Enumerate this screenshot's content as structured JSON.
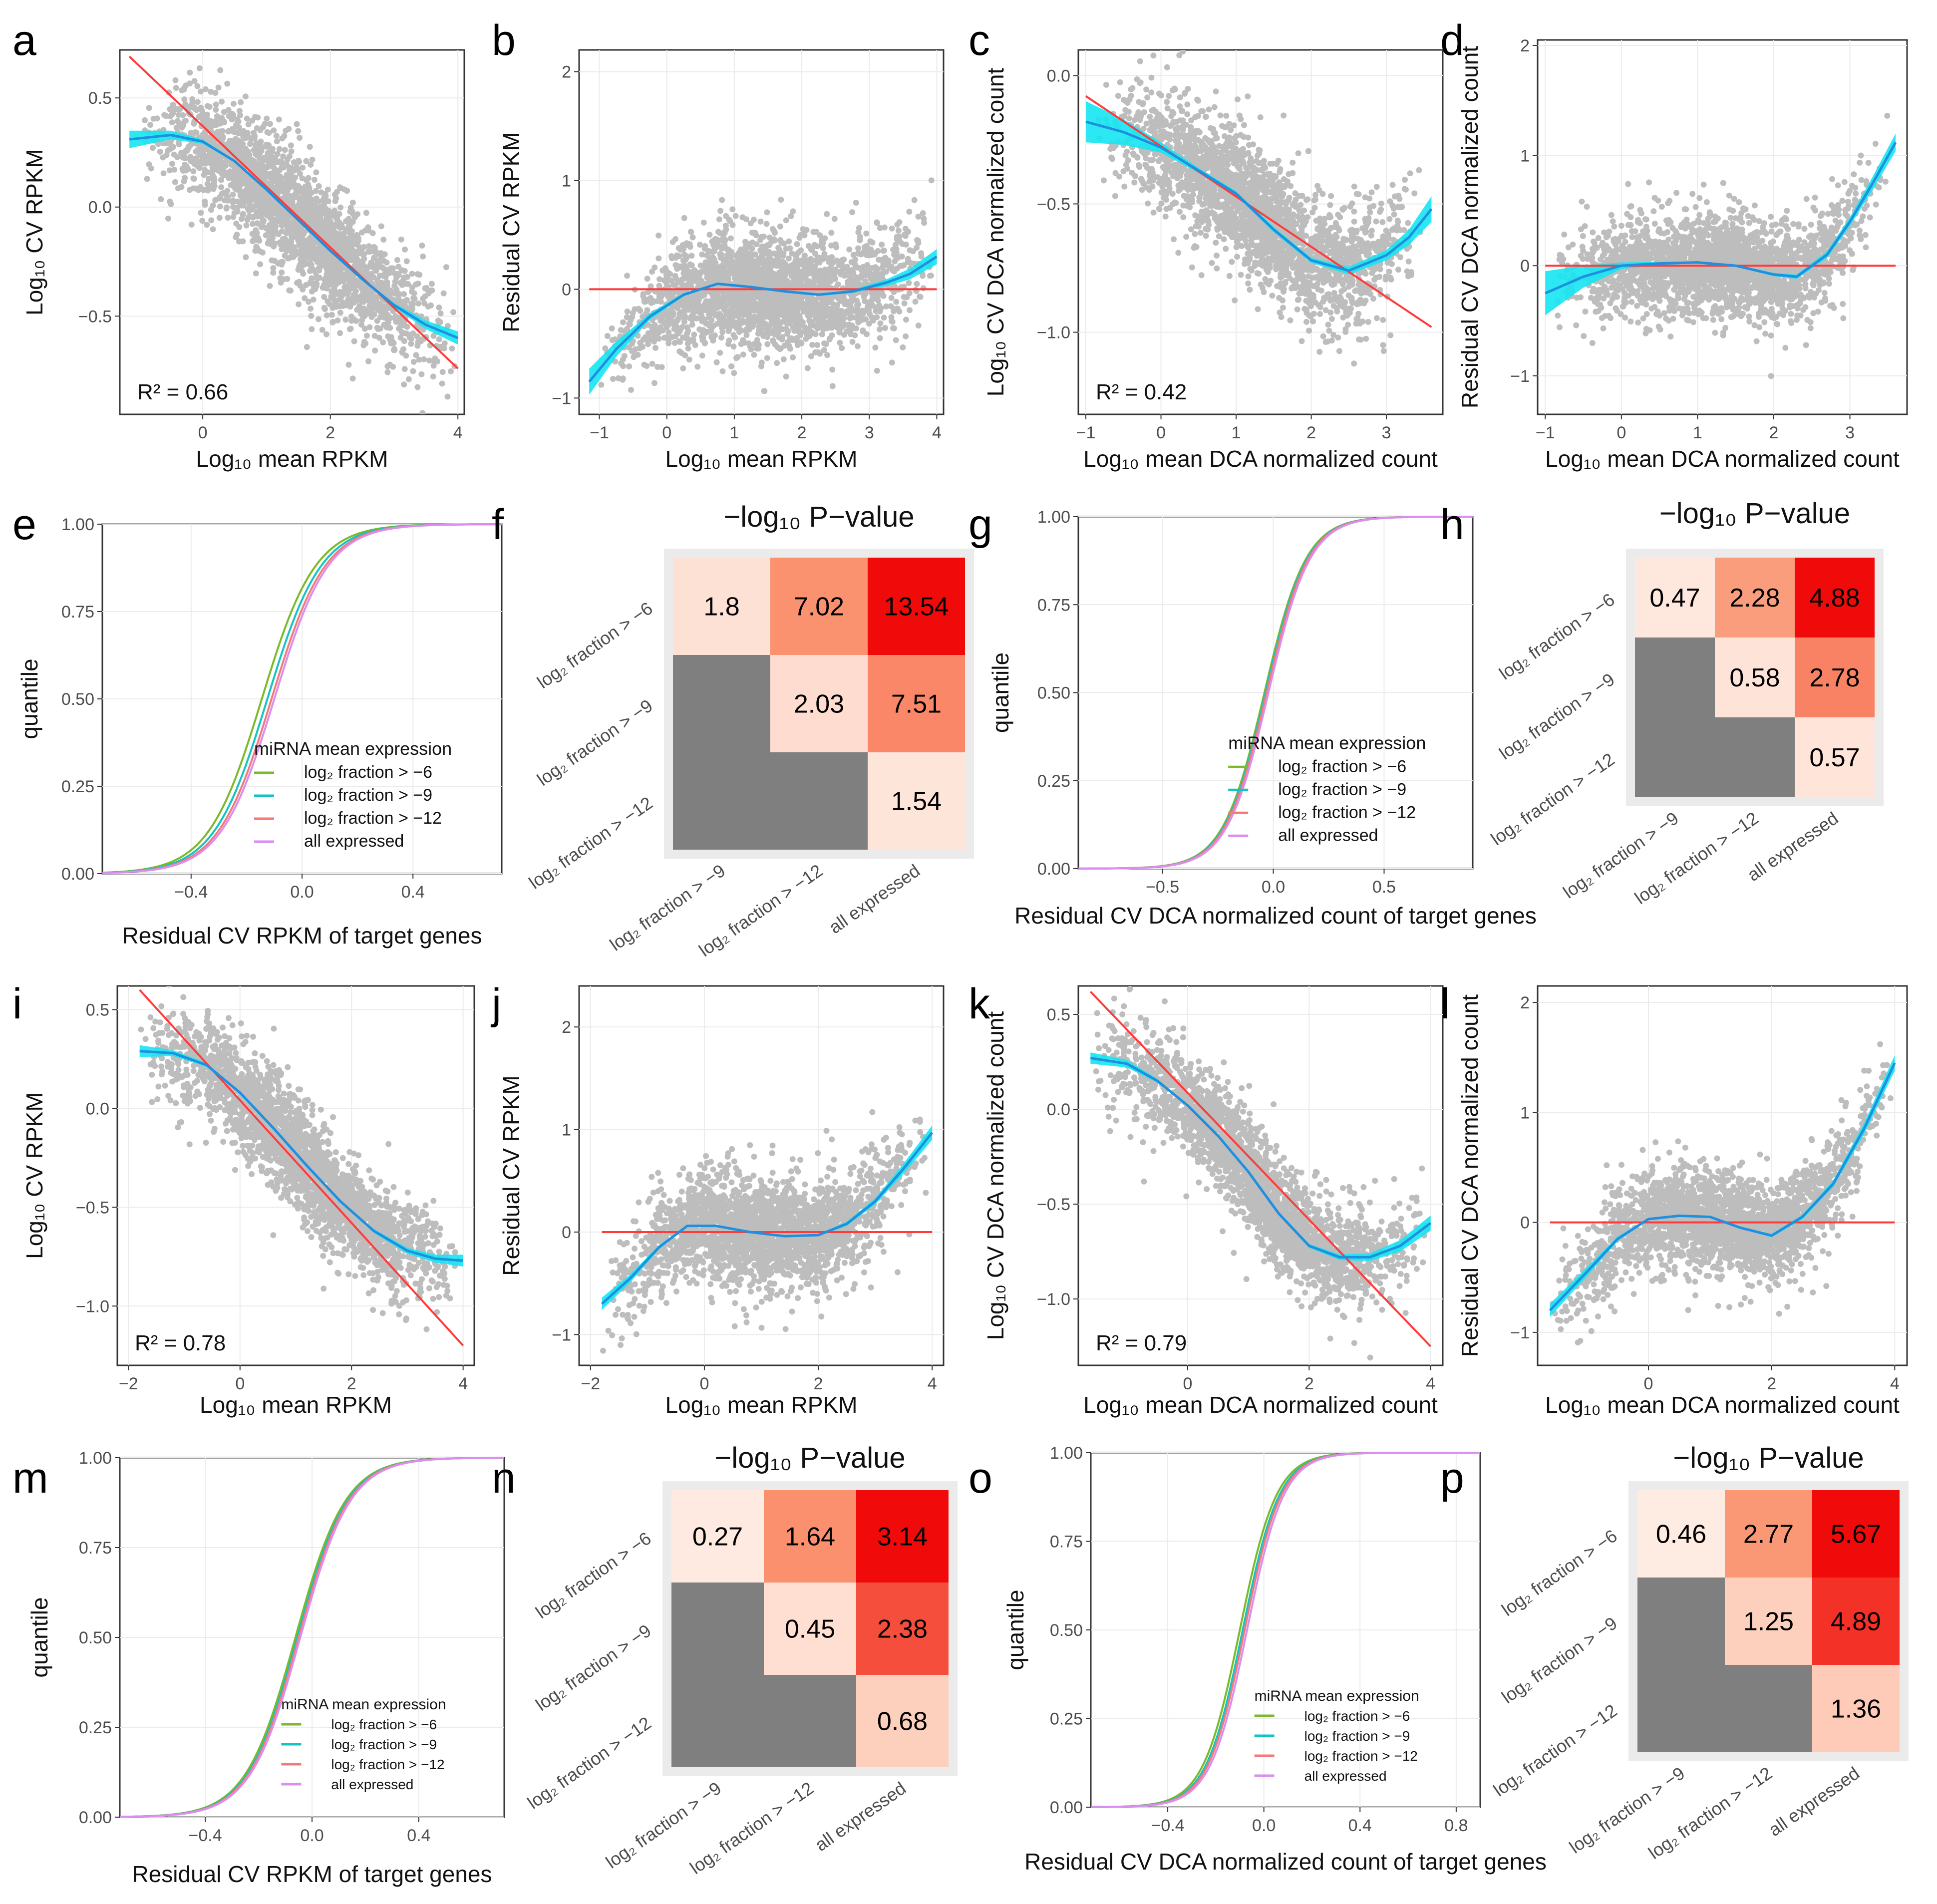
{
  "figure": {
    "panels_order": [
      "a",
      "b",
      "c",
      "d",
      "e",
      "f",
      "g",
      "h",
      "i",
      "j",
      "k",
      "l",
      "m",
      "n",
      "o",
      "p"
    ]
  },
  "colors": {
    "points": "#bdbdbd",
    "fit_line": "#ff3b3b",
    "loess": "#1f8fe0",
    "band": "#15e6f2",
    "grid": "#ebebeb",
    "na_cell": "#7f7f7f",
    "green": "#7cba2b",
    "cyan": "#13c4c4",
    "salmon": "#f47a7a",
    "violet": "#d98ef0"
  },
  "chart_data": [
    {
      "id": "a",
      "label": "a",
      "type": "scatter",
      "xlabel": "Log₁₀ mean RPKM",
      "ylabel": "Log₁₀ CV RPKM",
      "xlim": [
        -1.3,
        4.1
      ],
      "ylim": [
        -0.95,
        0.72
      ],
      "xticks": [
        0,
        2,
        4
      ],
      "yticks": [
        -0.5,
        0.0,
        0.5
      ],
      "r2_label": "R² = 0.66",
      "cloud": {
        "xmin": -1.0,
        "xmax": 4.0,
        "slope": -0.22,
        "intercept": 0.26,
        "sd": 0.13
      },
      "fit_line": [
        [
          -1.15,
          0.69
        ],
        [
          4.0,
          -0.74
        ]
      ],
      "loess": [
        [
          -1.15,
          0.31
        ],
        [
          -0.5,
          0.33
        ],
        [
          0.0,
          0.3
        ],
        [
          0.5,
          0.21
        ],
        [
          1.0,
          0.08
        ],
        [
          1.5,
          -0.06
        ],
        [
          2.0,
          -0.2
        ],
        [
          2.5,
          -0.33
        ],
        [
          3.0,
          -0.45
        ],
        [
          3.5,
          -0.54
        ],
        [
          4.0,
          -0.6
        ]
      ],
      "band_halfwidth": [
        0.04,
        0.02,
        0.01,
        0.005,
        0.005,
        0.005,
        0.005,
        0.005,
        0.01,
        0.02,
        0.03
      ]
    },
    {
      "id": "b",
      "label": "b",
      "type": "scatter",
      "xlabel": "Log₁₀ mean RPKM",
      "ylabel": "Residual CV RPKM",
      "xlim": [
        -1.3,
        4.1
      ],
      "ylim": [
        -1.15,
        2.2
      ],
      "xticks": [
        -1,
        0,
        1,
        2,
        3,
        4
      ],
      "yticks": [
        -1,
        0,
        1,
        2
      ],
      "cloud": {
        "xmin": -1.0,
        "xmax": 4.0,
        "slope": 0.0,
        "intercept": 0.0,
        "sd": 0.25
      },
      "fit_line": [
        [
          -1.15,
          0.0
        ],
        [
          4.0,
          0.0
        ]
      ],
      "loess": [
        [
          -1.15,
          -0.85
        ],
        [
          -0.75,
          -0.55
        ],
        [
          -0.25,
          -0.25
        ],
        [
          0.25,
          -0.05
        ],
        [
          0.75,
          0.05
        ],
        [
          1.25,
          0.02
        ],
        [
          1.75,
          -0.02
        ],
        [
          2.25,
          -0.05
        ],
        [
          2.75,
          -0.02
        ],
        [
          3.25,
          0.06
        ],
        [
          3.6,
          0.14
        ],
        [
          4.0,
          0.3
        ]
      ],
      "band_halfwidth": [
        0.12,
        0.07,
        0.03,
        0.015,
        0.01,
        0.01,
        0.01,
        0.01,
        0.015,
        0.03,
        0.05,
        0.07
      ]
    },
    {
      "id": "c",
      "label": "c",
      "type": "scatter",
      "xlabel": "Log₁₀ mean DCA normalized count",
      "ylabel": "Log₁₀ CV DCA normalized count",
      "xlim": [
        -1.1,
        3.75
      ],
      "ylim": [
        -1.32,
        0.1
      ],
      "xticks": [
        -1,
        0,
        1,
        2,
        3
      ],
      "yticks": [
        -1.0,
        -0.5,
        0.0
      ],
      "r2_label": "R² = 0.42",
      "cloud": {
        "xmin": -0.9,
        "xmax": 3.5,
        "slope": -0.17,
        "intercept": -0.29,
        "sd": 0.12
      },
      "fit_line": [
        [
          -1.0,
          -0.08
        ],
        [
          3.6,
          -0.98
        ]
      ],
      "loess": [
        [
          -1.0,
          -0.18
        ],
        [
          -0.5,
          -0.22
        ],
        [
          0.0,
          -0.28
        ],
        [
          0.5,
          -0.37
        ],
        [
          1.0,
          -0.46
        ],
        [
          1.5,
          -0.6
        ],
        [
          2.0,
          -0.72
        ],
        [
          2.5,
          -0.76
        ],
        [
          3.0,
          -0.7
        ],
        [
          3.3,
          -0.63
        ],
        [
          3.6,
          -0.52
        ]
      ],
      "band_halfwidth": [
        0.08,
        0.05,
        0.02,
        0.01,
        0.01,
        0.01,
        0.01,
        0.015,
        0.02,
        0.03,
        0.05
      ]
    },
    {
      "id": "d",
      "label": "d",
      "type": "scatter",
      "xlabel": "Log₁₀ mean DCA normalized count",
      "ylabel": "Residual CV DCA normalized count",
      "xlim": [
        -1.1,
        3.75
      ],
      "ylim": [
        -1.35,
        2.05
      ],
      "xticks": [
        -1,
        0,
        1,
        2,
        3
      ],
      "yticks": [
        -1,
        0,
        1,
        2
      ],
      "cloud": {
        "xmin": -0.9,
        "xmax": 3.5,
        "slope": 0.0,
        "intercept": 0.0,
        "sd": 0.22
      },
      "fit_line": [
        [
          -1.0,
          0.0
        ],
        [
          3.6,
          0.0
        ]
      ],
      "loess": [
        [
          -1.0,
          -0.25
        ],
        [
          -0.5,
          -0.1
        ],
        [
          0.0,
          0.0
        ],
        [
          0.5,
          0.02
        ],
        [
          1.0,
          0.03
        ],
        [
          1.5,
          0.0
        ],
        [
          2.0,
          -0.08
        ],
        [
          2.3,
          -0.1
        ],
        [
          2.7,
          0.1
        ],
        [
          3.0,
          0.4
        ],
        [
          3.3,
          0.75
        ],
        [
          3.6,
          1.12
        ]
      ],
      "band_halfwidth": [
        0.2,
        0.1,
        0.03,
        0.015,
        0.01,
        0.01,
        0.015,
        0.02,
        0.03,
        0.04,
        0.06,
        0.08
      ]
    },
    {
      "id": "e",
      "label": "e",
      "type": "line",
      "xlabel": "Residual CV RPKM of target genes",
      "ylabel": "quantile",
      "xlim": [
        -0.72,
        0.72
      ],
      "ylim": [
        0,
        1
      ],
      "xticks": [
        -0.4,
        0.0,
        0.4
      ],
      "yticks": [
        0.0,
        0.25,
        0.5,
        0.75,
        1.0
      ],
      "ecdf_center": -0.11,
      "ecdf_scale": 0.165,
      "series": [
        {
          "name": "log₂ fraction > −6",
          "color": "green",
          "shift": -0.035
        },
        {
          "name": "log₂ fraction > −9",
          "color": "cyan",
          "shift": -0.015
        },
        {
          "name": "log₂ fraction > −12",
          "color": "salmon",
          "shift": 0.0
        },
        {
          "name": "all expressed",
          "color": "violet",
          "shift": 0.01
        }
      ],
      "legend_title": "miRNA mean expression",
      "legend_position": "bottom-right"
    },
    {
      "id": "f",
      "label": "f",
      "type": "heatmap",
      "title": "−log₁₀ P−value",
      "row_labels": [
        "log₂ fraction > −6",
        "log₂ fraction > −9",
        "log₂ fraction > −12"
      ],
      "col_labels": [
        "log₂ fraction > −9",
        "log₂ fraction > −12",
        "all expressed"
      ],
      "values": [
        [
          "1.8",
          "7.02",
          "13.54"
        ],
        [
          null,
          "2.03",
          "7.51"
        ],
        [
          null,
          null,
          "1.54"
        ]
      ],
      "max": 13.54
    },
    {
      "id": "g",
      "label": "g",
      "type": "line",
      "xlabel": "Residual CV DCA normalized count of target genes",
      "ylabel": "quantile",
      "xlim": [
        -0.88,
        0.9
      ],
      "ylim": [
        0,
        1
      ],
      "xticks": [
        -0.5,
        0.0,
        0.5
      ],
      "yticks": [
        0.0,
        0.25,
        0.5,
        0.75,
        1.0
      ],
      "ecdf_center": -0.03,
      "ecdf_scale": 0.16,
      "series": [
        {
          "name": "log₂ fraction > −6",
          "color": "green",
          "shift": -0.01
        },
        {
          "name": "log₂ fraction > −9",
          "color": "cyan",
          "shift": -0.005
        },
        {
          "name": "log₂ fraction > −12",
          "color": "salmon",
          "shift": 0.0
        },
        {
          "name": "all expressed",
          "color": "violet",
          "shift": 0.008
        }
      ],
      "legend_title": "miRNA mean expression",
      "legend_position": "bottom-right"
    },
    {
      "id": "h",
      "label": "h",
      "type": "heatmap",
      "title": "−log₁₀ P−value",
      "row_labels": [
        "log₂ fraction > −6",
        "log₂ fraction > −9",
        "log₂ fraction > −12"
      ],
      "col_labels": [
        "log₂ fraction > −9",
        "log₂ fraction > −12",
        "all expressed"
      ],
      "values": [
        [
          "0.47",
          "2.28",
          "4.88"
        ],
        [
          null,
          "0.58",
          "2.78"
        ],
        [
          null,
          null,
          "0.57"
        ]
      ],
      "max": 4.88
    },
    {
      "id": "i",
      "label": "i",
      "type": "scatter",
      "xlabel": "Log₁₀ mean RPKM",
      "ylabel": "Log₁₀ CV RPKM",
      "xlim": [
        -2.2,
        4.2
      ],
      "ylim": [
        -1.3,
        0.62
      ],
      "xticks": [
        -2,
        0,
        2,
        4
      ],
      "yticks": [
        -1.0,
        -0.5,
        0.0,
        0.5
      ],
      "r2_label": "R² = 0.78",
      "cloud": {
        "xmin": -1.8,
        "xmax": 4.0,
        "slope": -0.27,
        "intercept": 0.08,
        "sd": 0.13
      },
      "fit_line": [
        [
          -1.8,
          0.6
        ],
        [
          4.0,
          -1.2
        ]
      ],
      "loess": [
        [
          -1.8,
          0.29
        ],
        [
          -1.2,
          0.28
        ],
        [
          -0.6,
          0.22
        ],
        [
          0.0,
          0.08
        ],
        [
          0.6,
          -0.1
        ],
        [
          1.2,
          -0.29
        ],
        [
          1.8,
          -0.47
        ],
        [
          2.4,
          -0.62
        ],
        [
          3.0,
          -0.72
        ],
        [
          3.5,
          -0.76
        ],
        [
          4.0,
          -0.77
        ]
      ],
      "band_halfwidth": [
        0.03,
        0.015,
        0.01,
        0.005,
        0.005,
        0.005,
        0.005,
        0.01,
        0.015,
        0.02,
        0.03
      ]
    },
    {
      "id": "j",
      "label": "j",
      "type": "scatter",
      "xlabel": "Log₁₀ mean RPKM",
      "ylabel": "Residual CV RPKM",
      "xlim": [
        -2.2,
        4.2
      ],
      "ylim": [
        -1.3,
        2.4
      ],
      "xticks": [
        -2,
        0,
        2,
        4
      ],
      "yticks": [
        -1,
        0,
        1,
        2
      ],
      "cloud": {
        "xmin": -1.8,
        "xmax": 4.0,
        "slope": 0.0,
        "intercept": 0.0,
        "sd": 0.25
      },
      "fit_line": [
        [
          -1.8,
          0.0
        ],
        [
          4.0,
          0.0
        ]
      ],
      "loess": [
        [
          -1.8,
          -0.7
        ],
        [
          -1.3,
          -0.45
        ],
        [
          -0.8,
          -0.15
        ],
        [
          -0.3,
          0.06
        ],
        [
          0.2,
          0.06
        ],
        [
          0.8,
          0.0
        ],
        [
          1.4,
          -0.04
        ],
        [
          2.0,
          -0.03
        ],
        [
          2.5,
          0.08
        ],
        [
          3.0,
          0.3
        ],
        [
          3.5,
          0.62
        ],
        [
          4.0,
          0.97
        ]
      ],
      "band_halfwidth": [
        0.06,
        0.04,
        0.02,
        0.01,
        0.01,
        0.01,
        0.01,
        0.01,
        0.02,
        0.03,
        0.05,
        0.07
      ]
    },
    {
      "id": "k",
      "label": "k",
      "type": "scatter",
      "xlabel": "Log₁₀ mean DCA normalized count",
      "ylabel": "Log₁₀ CV DCA normalized count",
      "xlim": [
        -1.8,
        4.2
      ],
      "ylim": [
        -1.35,
        0.65
      ],
      "xticks": [
        0,
        2,
        4
      ],
      "yticks": [
        -1.0,
        -0.5,
        0.0,
        0.5
      ],
      "r2_label": "R² = 0.79",
      "cloud": {
        "xmin": -1.6,
        "xmax": 4.0,
        "slope": -0.28,
        "intercept": 0.0,
        "sd": 0.13
      },
      "fit_line": [
        [
          -1.6,
          0.62
        ],
        [
          4.0,
          -1.25
        ]
      ],
      "loess": [
        [
          -1.6,
          0.27
        ],
        [
          -1.0,
          0.24
        ],
        [
          -0.5,
          0.15
        ],
        [
          0.0,
          0.02
        ],
        [
          0.5,
          -0.14
        ],
        [
          1.0,
          -0.33
        ],
        [
          1.5,
          -0.55
        ],
        [
          2.0,
          -0.72
        ],
        [
          2.5,
          -0.78
        ],
        [
          3.0,
          -0.78
        ],
        [
          3.5,
          -0.72
        ],
        [
          4.0,
          -0.6
        ]
      ],
      "band_halfwidth": [
        0.03,
        0.02,
        0.01,
        0.005,
        0.005,
        0.005,
        0.01,
        0.01,
        0.015,
        0.02,
        0.03,
        0.04
      ]
    },
    {
      "id": "l",
      "label": "l",
      "type": "scatter",
      "xlabel": "Log₁₀ mean DCA normalized count",
      "ylabel": "Residual CV DCA normalized count",
      "xlim": [
        -1.8,
        4.2
      ],
      "ylim": [
        -1.3,
        2.15
      ],
      "xticks": [
        0,
        2,
        4
      ],
      "yticks": [
        -1,
        0,
        1,
        2
      ],
      "cloud": {
        "xmin": -1.6,
        "xmax": 4.0,
        "slope": 0.0,
        "intercept": 0.0,
        "sd": 0.22
      },
      "fit_line": [
        [
          -1.6,
          0.0
        ],
        [
          4.0,
          0.0
        ]
      ],
      "loess": [
        [
          -1.6,
          -0.8
        ],
        [
          -1.0,
          -0.45
        ],
        [
          -0.5,
          -0.15
        ],
        [
          0.0,
          0.03
        ],
        [
          0.5,
          0.06
        ],
        [
          1.0,
          0.05
        ],
        [
          1.5,
          -0.05
        ],
        [
          2.0,
          -0.12
        ],
        [
          2.5,
          0.05
        ],
        [
          3.0,
          0.35
        ],
        [
          3.5,
          0.85
        ],
        [
          4.0,
          1.45
        ]
      ],
      "band_halfwidth": [
        0.06,
        0.04,
        0.02,
        0.01,
        0.01,
        0.01,
        0.01,
        0.015,
        0.02,
        0.03,
        0.05,
        0.07
      ]
    },
    {
      "id": "m",
      "label": "m",
      "type": "line",
      "xlabel": "Residual CV RPKM of target genes",
      "ylabel": "quantile",
      "xlim": [
        -0.72,
        0.72
      ],
      "ylim": [
        0,
        1
      ],
      "xticks": [
        -0.4,
        0.0,
        0.4
      ],
      "yticks": [
        0.0,
        0.25,
        0.5,
        0.75,
        1.0
      ],
      "ecdf_center": -0.05,
      "ecdf_scale": 0.16,
      "series": [
        {
          "name": "log₂ fraction > −6",
          "color": "green",
          "shift": -0.012
        },
        {
          "name": "log₂ fraction > −9",
          "color": "cyan",
          "shift": -0.005
        },
        {
          "name": "log₂ fraction > −12",
          "color": "salmon",
          "shift": 0.0
        },
        {
          "name": "all expressed",
          "color": "violet",
          "shift": 0.006
        }
      ],
      "legend_title": "miRNA mean expression",
      "legend_position": "bottom-right"
    },
    {
      "id": "n",
      "label": "n",
      "type": "heatmap",
      "title": "−log₁₀ P−value",
      "row_labels": [
        "log₂ fraction > −6",
        "log₂ fraction > −9",
        "log₂ fraction > −12"
      ],
      "col_labels": [
        "log₂ fraction > −9",
        "log₂ fraction > −12",
        "all expressed"
      ],
      "values": [
        [
          "0.27",
          "1.64",
          "3.14"
        ],
        [
          null,
          "0.45",
          "2.38"
        ],
        [
          null,
          null,
          "0.68"
        ]
      ],
      "max": 3.14
    },
    {
      "id": "o",
      "label": "o",
      "type": "line",
      "xlabel": "Residual CV DCA normalized count of target genes",
      "ylabel": "quantile",
      "xlim": [
        -0.72,
        0.9
      ],
      "ylim": [
        0,
        1
      ],
      "xticks": [
        -0.4,
        0.0,
        0.4,
        0.8
      ],
      "yticks": [
        0.0,
        0.25,
        0.5,
        0.75,
        1.0
      ],
      "ecdf_center": -0.08,
      "ecdf_scale": 0.13,
      "series": [
        {
          "name": "log₂ fraction > −6",
          "color": "green",
          "shift": -0.02
        },
        {
          "name": "log₂ fraction > −9",
          "color": "cyan",
          "shift": -0.008
        },
        {
          "name": "log₂ fraction > −12",
          "color": "salmon",
          "shift": 0.0
        },
        {
          "name": "all expressed",
          "color": "violet",
          "shift": 0.01
        }
      ],
      "legend_title": "miRNA mean expression",
      "legend_position": "bottom-right"
    },
    {
      "id": "p",
      "label": "p",
      "type": "heatmap",
      "title": "−log₁₀ P−value",
      "row_labels": [
        "log₂ fraction > −6",
        "log₂ fraction > −9",
        "log₂ fraction > −12"
      ],
      "col_labels": [
        "log₂ fraction > −9",
        "log₂ fraction > −12",
        "all expressed"
      ],
      "values": [
        [
          "0.46",
          "2.77",
          "5.67"
        ],
        [
          null,
          "1.25",
          "4.89"
        ],
        [
          null,
          null,
          "1.36"
        ]
      ],
      "max": 5.67
    }
  ]
}
